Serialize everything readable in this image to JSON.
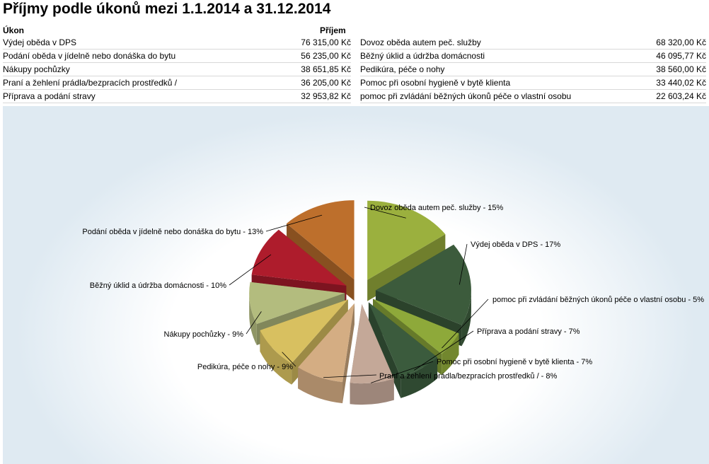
{
  "title": "Příjmy podle úkonů mezi 1.1.2014 a 31.12.2014",
  "table": {
    "header_ukon": "Úkon",
    "header_prijem": "Příjem",
    "left": [
      {
        "label": "Výdej oběda v DPS",
        "value": "76 315,00 Kč"
      },
      {
        "label": "Podání oběda v jídelně nebo donáška do bytu",
        "value": "56 235,00 Kč"
      },
      {
        "label": "Nákupy  pochůzky",
        "value": "38 651,85 Kč"
      },
      {
        "label": "Praní  a žehlení prádla/bezpracích prostředků /",
        "value": "36 205,00 Kč"
      },
      {
        "label": "Příprava a  podání  stravy",
        "value": "32 953,82 Kč"
      }
    ],
    "right": [
      {
        "label": "Dovoz oběda autem peč. služby",
        "value": "68 320,00 Kč"
      },
      {
        "label": "Běžný úklid a údržba domácnosti",
        "value": "46 095,77 Kč"
      },
      {
        "label": "Pedikúra, péče o nohy",
        "value": "38 560,00 Kč"
      },
      {
        "label": "Pomoc při osobní hygieně v bytě klienta",
        "value": "33 440,02 Kč"
      },
      {
        "label": "pomoc při zvládání běžných úkonů péče o vlastní osobu",
        "value": "22 603,24 Kč"
      }
    ]
  },
  "chart_data": {
    "type": "pie",
    "style": "3d-exploded",
    "slices": [
      {
        "name": "Dovoz oběda autem peč. služby",
        "value": 68320.0,
        "label": "Dovoz oběda autem peč. služby - 15%",
        "color": "#9bb03e"
      },
      {
        "name": "Výdej oběda v DPS",
        "value": 76315.0,
        "label": "Výdej oběda v DPS - 17%",
        "color": "#3c5b3c"
      },
      {
        "name": "pomoc při zvládání běžných úkonů péče o vlastní osobu",
        "value": 22603.24,
        "label": "pomoc při zvládání běžných úkonů péče o vlastní osobu - 5%",
        "color": "#8ea93a"
      },
      {
        "name": "Příprava a  podání  stravy",
        "value": 32953.82,
        "label": "Příprava a  podání  stravy - 7%",
        "color": "#3b5b3d"
      },
      {
        "name": "Pomoc při osobní hygieně v bytě klienta",
        "value": 33440.02,
        "label": "Pomoc při osobní hygieně v bytě klienta - 7%",
        "color": "#c4a898"
      },
      {
        "name": "Praní  a žehlení prádla/bezpracích prostředků /",
        "value": 36205.0,
        "label": "Praní  a žehlení prádla/bezpracích prostředků / - 8%",
        "color": "#d4ad83"
      },
      {
        "name": "Pedikúra, péče o nohy",
        "value": 38560.0,
        "label": "Pedikúra, péče o nohy - 9%",
        "color": "#d8c060"
      },
      {
        "name": "Nákupy  pochůzky",
        "value": 38651.85,
        "label": "Nákupy  pochůzky - 9%",
        "color": "#b3bc7e"
      },
      {
        "name": "Běžný úklid a údržba domácnosti",
        "value": 46095.77,
        "label": "Běžný úklid a údržba domácnosti - 10%",
        "color": "#ae1c2c"
      },
      {
        "name": "Podání oběda v jídelně nebo donáška do bytu",
        "value": 56235.0,
        "label": "Podání oběda v jídelně nebo donáška do bytu - 13%",
        "color": "#bd6f2c"
      }
    ],
    "legend": "none"
  }
}
